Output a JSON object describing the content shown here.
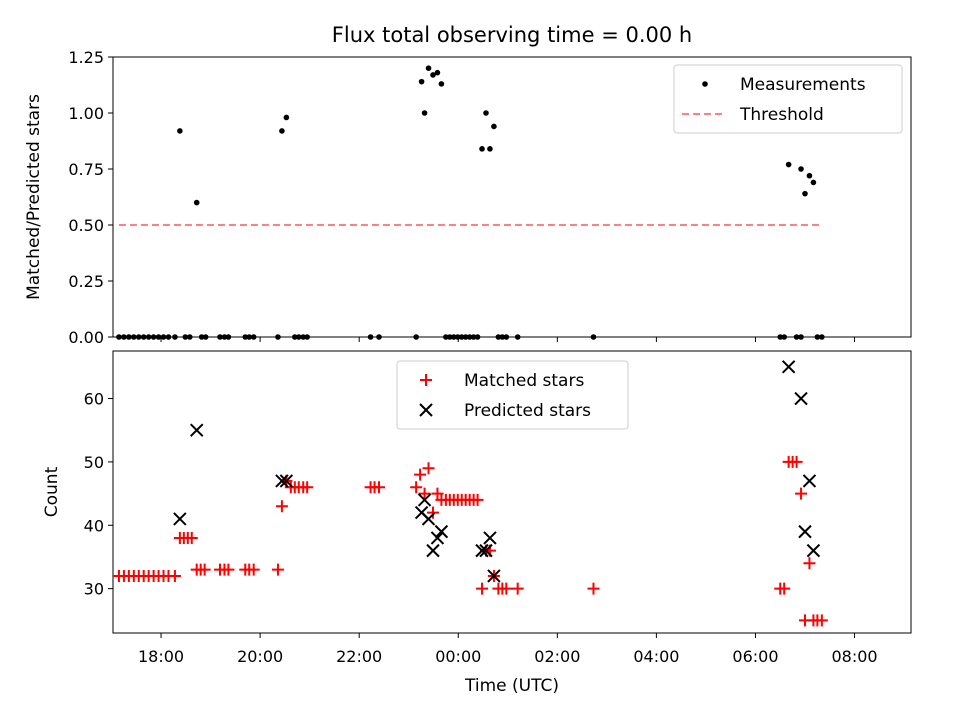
{
  "figure_title": "Flux total observing time = 0.00 h",
  "x_axis_title": "Time (UTC)",
  "x_tick_labels": [
    "18:00",
    "20:00",
    "22:00",
    "00:00",
    "02:00",
    "04:00",
    "06:00",
    "08:00"
  ],
  "chart_data": [
    {
      "type": "scatter",
      "ylabel": "Matched/Predicted stars",
      "xlim": [
        -0.97,
        15.14
      ],
      "ylim": [
        0,
        1.25
      ],
      "y_ticks": [
        0.0,
        0.25,
        0.5,
        0.75,
        1.0,
        1.25
      ],
      "y_tick_labels": [
        "0.00",
        "0.25",
        "0.50",
        "0.75",
        "1.00",
        "1.25"
      ],
      "legend": {
        "position": "top-right",
        "entries": [
          "Measurements",
          "Threshold"
        ]
      },
      "series": [
        {
          "name": "Measurements",
          "color": "#000000",
          "marker": "dot",
          "points": [
            [
              0.38,
              0.92
            ],
            [
              0.72,
              0.6
            ],
            [
              2.44,
              0.92
            ],
            [
              2.53,
              0.98
            ],
            [
              5.26,
              1.14
            ],
            [
              5.32,
              1.0
            ],
            [
              5.4,
              1.2
            ],
            [
              5.49,
              1.17
            ],
            [
              5.58,
              1.18
            ],
            [
              5.66,
              1.13
            ],
            [
              6.48,
              0.84
            ],
            [
              6.56,
              1.0
            ],
            [
              6.64,
              0.84
            ],
            [
              6.72,
              0.94
            ],
            [
              12.67,
              0.77
            ],
            [
              12.92,
              0.75
            ],
            [
              13.0,
              0.64
            ],
            [
              13.09,
              0.72
            ],
            [
              13.17,
              0.69
            ],
            [
              -0.85,
              0
            ],
            [
              -0.75,
              0
            ],
            [
              -0.65,
              0
            ],
            [
              -0.55,
              0
            ],
            [
              -0.45,
              0
            ],
            [
              -0.35,
              0
            ],
            [
              -0.25,
              0
            ],
            [
              -0.15,
              0
            ],
            [
              -0.05,
              0
            ],
            [
              0.05,
              0
            ],
            [
              0.15,
              0
            ],
            [
              0.28,
              0
            ],
            [
              0.49,
              0
            ],
            [
              0.58,
              0
            ],
            [
              0.82,
              0
            ],
            [
              0.9,
              0
            ],
            [
              1.19,
              0
            ],
            [
              1.28,
              0
            ],
            [
              1.36,
              0
            ],
            [
              1.7,
              0
            ],
            [
              1.78,
              0
            ],
            [
              1.87,
              0
            ],
            [
              2.36,
              0
            ],
            [
              2.7,
              0
            ],
            [
              2.78,
              0
            ],
            [
              2.87,
              0
            ],
            [
              2.95,
              0
            ],
            [
              4.23,
              0
            ],
            [
              4.4,
              0
            ],
            [
              5.15,
              0
            ],
            [
              5.75,
              0
            ],
            [
              5.83,
              0
            ],
            [
              5.91,
              0
            ],
            [
              5.99,
              0
            ],
            [
              6.07,
              0
            ],
            [
              6.15,
              0
            ],
            [
              6.23,
              0
            ],
            [
              6.31,
              0
            ],
            [
              6.39,
              0
            ],
            [
              6.81,
              0
            ],
            [
              6.89,
              0
            ],
            [
              6.97,
              0
            ],
            [
              7.2,
              0
            ],
            [
              8.73,
              0
            ],
            [
              12.5,
              0
            ],
            [
              12.58,
              0
            ],
            [
              12.83,
              0
            ],
            [
              12.92,
              0
            ],
            [
              13.25,
              0
            ],
            [
              13.34,
              0
            ]
          ]
        },
        {
          "name": "Threshold",
          "color": "#ff8080",
          "style": "dashed",
          "points": [
            [
              -0.85,
              0.5
            ],
            [
              13.33,
              0.5
            ]
          ]
        }
      ]
    },
    {
      "type": "scatter",
      "ylabel": "Count",
      "xlim": [
        -0.97,
        15.14
      ],
      "ylim": [
        23,
        67.5
      ],
      "y_ticks": [
        30,
        40,
        50,
        60
      ],
      "y_tick_labels": [
        "30",
        "40",
        "50",
        "60"
      ],
      "legend": {
        "position": "top-center",
        "entries": [
          "Matched stars",
          "Predicted stars"
        ]
      },
      "series": [
        {
          "name": "Matched stars",
          "color": "#ff0000",
          "marker": "plus",
          "points": [
            [
              -0.85,
              32
            ],
            [
              -0.75,
              32
            ],
            [
              -0.65,
              32
            ],
            [
              -0.55,
              32
            ],
            [
              -0.45,
              32
            ],
            [
              -0.35,
              32
            ],
            [
              -0.25,
              32
            ],
            [
              -0.15,
              32
            ],
            [
              -0.05,
              32
            ],
            [
              0.05,
              32
            ],
            [
              0.15,
              32
            ],
            [
              0.28,
              32
            ],
            [
              0.38,
              38
            ],
            [
              0.46,
              38
            ],
            [
              0.54,
              38
            ],
            [
              0.62,
              38
            ],
            [
              0.72,
              33
            ],
            [
              0.8,
              33
            ],
            [
              0.88,
              33
            ],
            [
              1.19,
              33
            ],
            [
              1.28,
              33
            ],
            [
              1.36,
              33
            ],
            [
              1.7,
              33
            ],
            [
              1.78,
              33
            ],
            [
              1.87,
              33
            ],
            [
              2.36,
              33
            ],
            [
              2.44,
              43
            ],
            [
              2.53,
              47
            ],
            [
              2.62,
              46
            ],
            [
              2.7,
              46
            ],
            [
              2.78,
              46
            ],
            [
              2.87,
              46
            ],
            [
              2.95,
              46
            ],
            [
              4.23,
              46
            ],
            [
              4.31,
              46
            ],
            [
              4.4,
              46
            ],
            [
              5.15,
              46
            ],
            [
              5.23,
              48
            ],
            [
              5.32,
              45
            ],
            [
              5.4,
              49
            ],
            [
              5.49,
              42
            ],
            [
              5.58,
              45
            ],
            [
              5.66,
              44
            ],
            [
              5.75,
              44
            ],
            [
              5.83,
              44
            ],
            [
              5.91,
              44
            ],
            [
              5.99,
              44
            ],
            [
              6.07,
              44
            ],
            [
              6.15,
              44
            ],
            [
              6.23,
              44
            ],
            [
              6.31,
              44
            ],
            [
              6.39,
              44
            ],
            [
              6.48,
              30
            ],
            [
              6.56,
              36
            ],
            [
              6.64,
              36
            ],
            [
              6.72,
              32
            ],
            [
              6.81,
              30
            ],
            [
              6.89,
              30
            ],
            [
              6.97,
              30
            ],
            [
              7.2,
              30
            ],
            [
              8.73,
              30
            ],
            [
              12.5,
              30
            ],
            [
              12.58,
              30
            ],
            [
              12.67,
              50
            ],
            [
              12.75,
              50
            ],
            [
              12.83,
              50
            ],
            [
              12.92,
              45
            ],
            [
              13.0,
              25
            ],
            [
              13.09,
              34
            ],
            [
              13.17,
              25
            ],
            [
              13.25,
              25
            ],
            [
              13.34,
              25
            ]
          ]
        },
        {
          "name": "Predicted stars",
          "color": "#000000",
          "marker": "x",
          "points": [
            [
              0.38,
              41
            ],
            [
              0.72,
              55
            ],
            [
              2.44,
              47
            ],
            [
              2.53,
              47
            ],
            [
              5.26,
              42
            ],
            [
              5.32,
              44
            ],
            [
              5.4,
              41
            ],
            [
              5.49,
              36
            ],
            [
              5.58,
              38
            ],
            [
              5.66,
              39
            ],
            [
              6.48,
              36
            ],
            [
              6.56,
              36
            ],
            [
              6.64,
              38
            ],
            [
              6.72,
              32
            ],
            [
              12.67,
              65
            ],
            [
              12.92,
              60
            ],
            [
              13.0,
              39
            ],
            [
              13.09,
              47
            ],
            [
              13.17,
              36
            ]
          ]
        }
      ]
    }
  ]
}
